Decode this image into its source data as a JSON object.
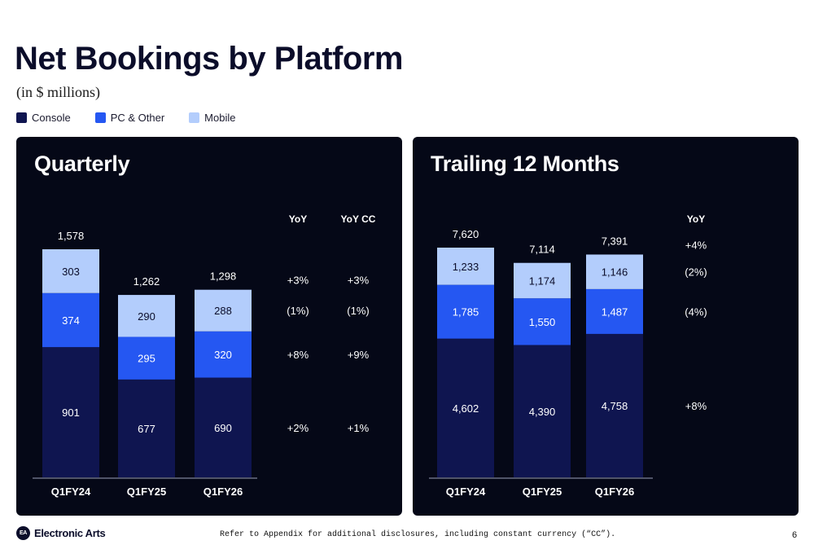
{
  "title": "Net Bookings by Platform",
  "subtitle": "(in $ millions)",
  "legend": [
    {
      "label": "Console",
      "color": "#0f1550"
    },
    {
      "label": "PC & Other",
      "color": "#2557f2"
    },
    {
      "label": "Mobile",
      "color": "#b3cdfc"
    }
  ],
  "chart_data": [
    {
      "type": "bar",
      "stacked": true,
      "title": "Quarterly",
      "categories": [
        "Q1FY24",
        "Q1FY25",
        "Q1FY26"
      ],
      "series": [
        {
          "name": "Console",
          "values": [
            901,
            677,
            690
          ],
          "labels": [
            "901",
            "677",
            "690"
          ]
        },
        {
          "name": "PC & Other",
          "values": [
            374,
            295,
            320
          ],
          "labels": [
            "374",
            "295",
            "320"
          ]
        },
        {
          "name": "Mobile",
          "values": [
            303,
            290,
            288
          ],
          "labels": [
            "303",
            "290",
            "288"
          ]
        }
      ],
      "totals": [
        1578,
        1262,
        1298
      ],
      "total_labels": [
        "1,578",
        "1,262",
        "1,298"
      ],
      "ylim": [
        0,
        1578
      ],
      "yoy_columns": [
        {
          "header": "YoY",
          "values": [
            "+2%",
            "+8%",
            "(1%)",
            "+3%"
          ]
        },
        {
          "header": "YoY CC",
          "values": [
            "+1%",
            "+9%",
            "(1%)",
            "+3%"
          ]
        }
      ]
    },
    {
      "type": "bar",
      "stacked": true,
      "title": "Trailing 12 Months",
      "categories": [
        "Q1FY24",
        "Q1FY25",
        "Q1FY26"
      ],
      "series": [
        {
          "name": "Console",
          "values": [
            4602,
            4390,
            4758
          ],
          "labels": [
            "4,602",
            "4,390",
            "4,758"
          ]
        },
        {
          "name": "PC & Other",
          "values": [
            1785,
            1550,
            1487
          ],
          "labels": [
            "1,785",
            "1,550",
            "1,487"
          ]
        },
        {
          "name": "Mobile",
          "values": [
            1233,
            1174,
            1146
          ],
          "labels": [
            "1,233",
            "1,174",
            "1,146"
          ]
        }
      ],
      "totals": [
        7620,
        7114,
        7391
      ],
      "total_labels": [
        "7,620",
        "7,114",
        "7,391"
      ],
      "ylim": [
        0,
        7620
      ],
      "yoy_columns": [
        {
          "header": "YoY",
          "values": [
            "+8%",
            "(4%)",
            "(2%)",
            "+4%"
          ]
        }
      ]
    }
  ],
  "footer": {
    "logo_badge": "EA",
    "logo_text": "Electronic Arts",
    "note": "Refer to Appendix for additional disclosures, including constant currency (“CC”).",
    "page": "6"
  }
}
